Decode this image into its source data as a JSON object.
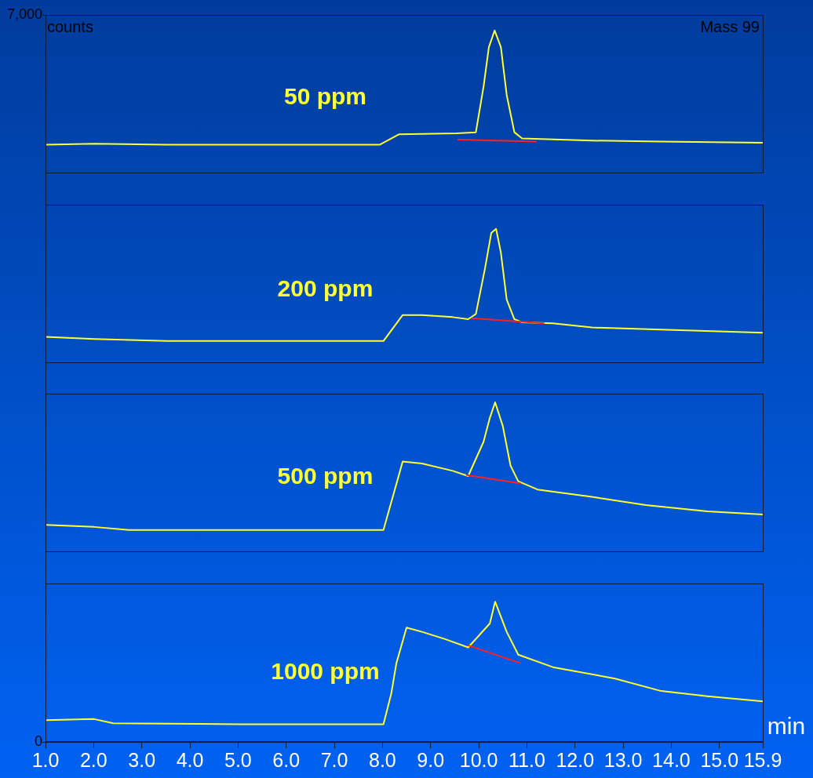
{
  "chart_data": {
    "type": "line",
    "title": "Mass 99",
    "ylabel": "counts",
    "xlabel": "min",
    "xlim": [
      1.0,
      15.9
    ],
    "xticks": [
      {
        "value": 1,
        "label": "1.0"
      },
      {
        "value": 2,
        "label": "2.0"
      },
      {
        "value": 3,
        "label": "3.0"
      },
      {
        "value": 4,
        "label": "4.0"
      },
      {
        "value": 5,
        "label": "5.0"
      },
      {
        "value": 6,
        "label": "6.0"
      },
      {
        "value": 7,
        "label": "7.0"
      },
      {
        "value": 8,
        "label": "8.0"
      },
      {
        "value": 9,
        "label": "9.0"
      },
      {
        "value": 10,
        "label": "10.0"
      },
      {
        "value": 11,
        "label": "11.0"
      },
      {
        "value": 12,
        "label": "12.0"
      },
      {
        "value": 13,
        "label": "13.0"
      },
      {
        "value": 14,
        "label": "14.0"
      },
      {
        "value": 15,
        "label": "15.0"
      },
      15.9
    ],
    "ylim": [
      0,
      7000
    ],
    "yticks": [
      0,
      {
        "value": 7000,
        "label": "7,000"
      }
    ],
    "grid": false,
    "legend": false,
    "marker": "none",
    "series": [
      {
        "name": "50 ppm",
        "color": "#ffff33",
        "x": [
          1.0,
          2.01,
          3.53,
          5.0,
          7.94,
          8.34,
          9.54,
          9.94,
          10.1,
          10.21,
          10.33,
          10.46,
          10.58,
          10.74,
          10.9,
          12.35,
          13.79,
          15.9
        ],
        "values": [
          5750,
          5760,
          5750,
          5750,
          5750,
          5850,
          5860,
          5870,
          6310,
          6690,
          6850,
          6690,
          6230,
          5870,
          5810,
          5790,
          5780,
          5770
        ]
      },
      {
        "name": "200 ppm",
        "color": "#ffff33",
        "x": [
          1.0,
          2.01,
          3.53,
          5.0,
          7.0,
          8.02,
          8.42,
          8.82,
          9.46,
          9.78,
          9.94,
          10.13,
          10.26,
          10.36,
          10.46,
          10.58,
          10.74,
          10.9,
          11.54,
          12.35,
          13.79,
          15.9
        ],
        "values": [
          3900,
          3880,
          3860,
          3860,
          3860,
          3860,
          4110,
          4110,
          4090,
          4070,
          4120,
          4560,
          4900,
          4940,
          4710,
          4260,
          4070,
          4040,
          4030,
          3990,
          3970,
          3940
        ]
      },
      {
        "name": "500 ppm",
        "color": "#ffff33",
        "x": [
          1.0,
          2.01,
          2.73,
          5.0,
          7.0,
          8.02,
          8.42,
          8.82,
          9.46,
          9.78,
          10.1,
          10.23,
          10.34,
          10.5,
          10.66,
          10.82,
          11.22,
          12.35,
          13.47,
          14.75,
          15.9
        ],
        "values": [
          2090,
          2070,
          2040,
          2040,
          2040,
          2040,
          2700,
          2680,
          2610,
          2560,
          2890,
          3120,
          3270,
          3040,
          2660,
          2510,
          2430,
          2360,
          2280,
          2220,
          2190
        ]
      },
      {
        "name": "1000 ppm",
        "color": "#ffff33",
        "x": [
          1.0,
          2.01,
          2.41,
          5.0,
          8.02,
          8.18,
          8.29,
          8.5,
          8.82,
          9.3,
          9.78,
          10.23,
          10.34,
          10.58,
          10.82,
          11.54,
          12.83,
          13.79,
          14.75,
          15.9
        ],
        "values": [
          210,
          220,
          180,
          170,
          170,
          460,
          760,
          1100,
          1060,
          990,
          910,
          1140,
          1350,
          1060,
          840,
          720,
          610,
          490,
          440,
          390
        ]
      },
      {
        "color": "#ff2020",
        "x": [
          9.57,
          11.19
        ],
        "values": [
          5800,
          5780
        ]
      },
      {
        "color": "#ff2020",
        "x": [
          9.86,
          11.35
        ],
        "values": [
          4080,
          4030
        ]
      },
      {
        "color": "#ff2020",
        "x": [
          9.75,
          10.86
        ],
        "values": [
          2570,
          2490
        ]
      },
      {
        "color": "#ff2020",
        "x": [
          9.78,
          10.86
        ],
        "values": [
          930,
          760
        ]
      }
    ]
  }
}
